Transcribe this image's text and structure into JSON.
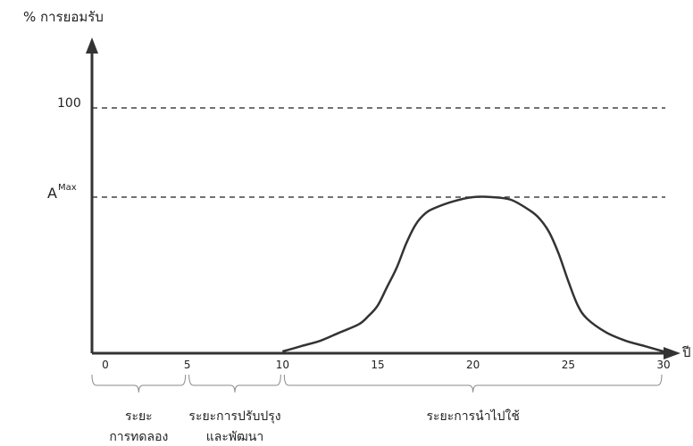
{
  "chart_data": {
    "type": "line",
    "ylabel": "% การยอมรับ",
    "xlabel": "ปี",
    "xlim": [
      0,
      30
    ],
    "x_ticks": [
      0,
      5,
      10,
      15,
      20,
      25,
      30
    ],
    "y_reference_lines": [
      {
        "label": "100",
        "value": 100
      },
      {
        "label_main": "A",
        "label_sup": "Max",
        "value": 57
      }
    ],
    "series": [
      {
        "x": [
          10,
          11,
          12,
          13,
          14,
          14.5,
          15,
          15.5,
          16,
          16.5,
          17,
          17.5,
          18,
          19,
          20,
          21,
          22,
          23,
          23.5,
          24,
          24.5,
          25,
          25.5,
          26,
          27,
          28,
          29,
          30
        ],
        "values": [
          0,
          2,
          4,
          7,
          10,
          13,
          17,
          24,
          31,
          40,
          47,
          51,
          53,
          55.5,
          57,
          57,
          56,
          52,
          49,
          44,
          36,
          26,
          17,
          12,
          7,
          4,
          2,
          0
        ]
      }
    ],
    "periods": [
      {
        "label_lines": [
          "ระยะ",
          "การทดลอง"
        ],
        "from": 0,
        "to": 5
      },
      {
        "label_lines": [
          "ระยะการปรับปรุง",
          "และพัฒนา"
        ],
        "from": 5,
        "to": 10
      },
      {
        "label_lines": [
          "ระยะการนำไปใช้"
        ],
        "from": 10,
        "to": 30
      }
    ]
  }
}
